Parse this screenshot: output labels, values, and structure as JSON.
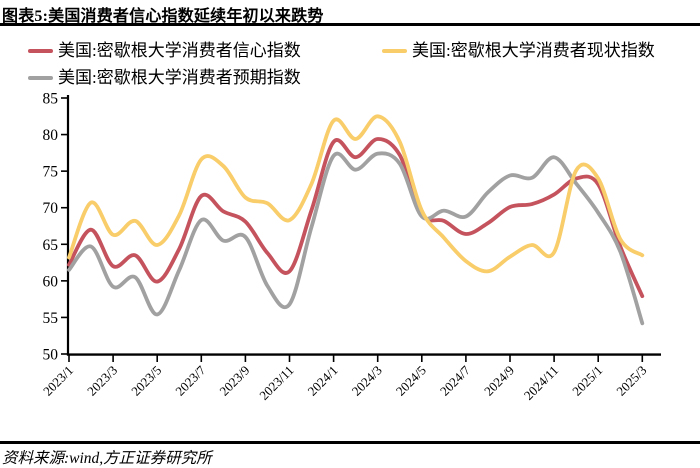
{
  "header": {
    "title": "图表5:美国消费者信心指数延续年初以来跌势"
  },
  "footer": {
    "source": "资料来源:wind,方正证券研究所"
  },
  "chart_data": {
    "type": "line",
    "title": "美国消费者信心指数延续年初以来跌势",
    "legend_position": "top-left",
    "grid": false,
    "ylim": [
      50,
      85
    ],
    "y_ticks": [
      50,
      55,
      60,
      65,
      70,
      75,
      80,
      85
    ],
    "x_tick_labels": [
      "2023/1",
      "2023/3",
      "2023/5",
      "2023/7",
      "2023/9",
      "2023/11",
      "2024/1",
      "2024/3",
      "2024/5",
      "2024/7",
      "2024/9",
      "2024/11",
      "2025/1",
      "2025/3"
    ],
    "x": [
      "2023/1",
      "2023/2",
      "2023/3",
      "2023/4",
      "2023/5",
      "2023/6",
      "2023/7",
      "2023/8",
      "2023/9",
      "2023/10",
      "2023/11",
      "2023/12",
      "2024/1",
      "2024/2",
      "2024/3",
      "2024/4",
      "2024/5",
      "2024/6",
      "2024/7",
      "2024/8",
      "2024/9",
      "2024/10",
      "2024/11",
      "2024/12",
      "2025/1",
      "2025/2",
      "2025/3"
    ],
    "series": [
      {
        "name": "美国:密歇根大学消费者信心指数",
        "color": "#C4535E",
        "values": [
          62.2,
          67.0,
          62.0,
          63.5,
          59.9,
          64.4,
          71.6,
          69.5,
          68.1,
          63.8,
          61.3,
          69.7,
          79.0,
          76.9,
          79.4,
          77.2,
          69.1,
          68.2,
          66.4,
          67.9,
          70.1,
          70.5,
          71.8,
          74.0,
          73.2,
          64.7,
          57.9
        ]
      },
      {
        "name": "美国:密歇根大学消费者现状指数",
        "color": "#F8CD6A",
        "values": [
          63.2,
          70.7,
          66.3,
          68.2,
          64.9,
          69.0,
          76.6,
          75.7,
          71.4,
          70.6,
          68.3,
          73.3,
          81.9,
          79.4,
          82.5,
          79.0,
          69.6,
          65.9,
          62.7,
          61.3,
          63.3,
          64.9,
          63.9,
          75.1,
          74.0,
          65.7,
          63.5
        ]
      },
      {
        "name": "美国:密歇根大学消费者预期指数",
        "color": "#A1A1A1",
        "values": [
          61.5,
          64.7,
          59.2,
          60.5,
          55.4,
          61.5,
          68.3,
          65.5,
          66.0,
          59.3,
          56.8,
          67.4,
          77.1,
          75.2,
          77.4,
          76.0,
          68.8,
          69.6,
          68.8,
          72.1,
          74.4,
          74.1,
          76.9,
          73.3,
          69.3,
          64.0,
          54.2
        ]
      }
    ],
    "axis_color": "#000000"
  }
}
